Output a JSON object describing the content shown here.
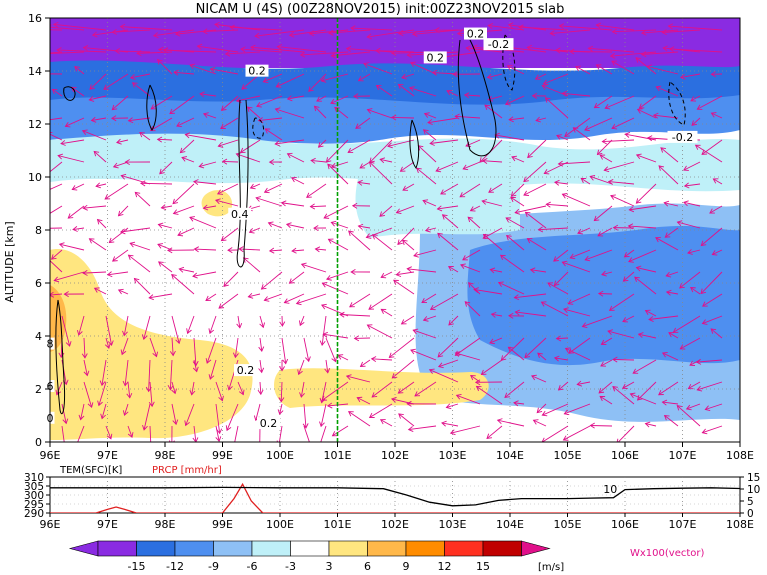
{
  "title": "NICAM U (4S) (00Z28NOV2015) init:00Z23NOV2015 slab",
  "colors": {
    "u_neg15": "#8a2be2",
    "u_neg12": "#2b6fe0",
    "u_neg9": "#4e8ff0",
    "u_neg6": "#8ec0f5",
    "u_neg3": "#bff0f8",
    "u_0": "#ffffff",
    "u_3": "#ffe680",
    "u_6": "#ffb84a",
    "u_9": "#ff8c00",
    "u_12": "#ff3020",
    "u_15": "#c00000",
    "u_max": "#e0108a",
    "vector": "#e0108a",
    "green_line": "#00a000",
    "prcp": "#e02020",
    "temp": "#000000"
  },
  "chart_data": [
    {
      "type": "heatmap",
      "title": "NICAM U (4S) (00Z28NOV2015) init:00Z23NOV2015 slab",
      "ylabel": "ALTITUDE [km]",
      "xlabel": "",
      "x_ticks": [
        "96E",
        "97E",
        "98E",
        "99E",
        "100E",
        "101E",
        "102E",
        "103E",
        "104E",
        "105E",
        "106E",
        "107E",
        "108E"
      ],
      "y_ticks": [
        "0",
        "2",
        "4",
        "6",
        "8",
        "10",
        "12",
        "14",
        "16"
      ],
      "xlim": [
        96,
        108
      ],
      "ylim": [
        0,
        16
      ],
      "grid": true,
      "highlight_x": 101,
      "contour_labels": [
        {
          "text": "0.2",
          "lon": 99.6,
          "alt": 13.9
        },
        {
          "text": "0.4",
          "lon": 99.3,
          "alt": 8.5
        },
        {
          "text": "0.2",
          "lon": 99.4,
          "alt": 2.6
        },
        {
          "text": "0.2",
          "lon": 99.8,
          "alt": 0.6
        },
        {
          "text": "0.2",
          "lon": 103.4,
          "alt": 15.3
        },
        {
          "text": "-0.2",
          "lon": 103.8,
          "alt": 14.9
        },
        {
          "text": "0.2",
          "lon": 102.7,
          "alt": 14.4
        },
        {
          "text": "-0.2",
          "lon": 107.0,
          "alt": 11.4
        },
        {
          "text": "8",
          "lon": 96.0,
          "alt": 3.6
        },
        {
          "text": "6",
          "lon": 96.0,
          "alt": 2.0
        },
        {
          "text": "0",
          "lon": 96.0,
          "alt": 0.8
        }
      ],
      "colorbar": {
        "levels": [
          "-15",
          "-12",
          "-9",
          "-6",
          "-3",
          "3",
          "6",
          "9",
          "12",
          "15"
        ],
        "unit": "[m/s]",
        "vector_label": "Wx100(vector)"
      }
    },
    {
      "type": "line",
      "title": "",
      "x_ticks": [
        "96E",
        "97E",
        "98E",
        "99E",
        "100E",
        "101E",
        "102E",
        "103E",
        "104E",
        "105E",
        "106E",
        "107E",
        "108E"
      ],
      "xlim": [
        96,
        108
      ],
      "series": [
        {
          "name": "TEM(SFC)[K]",
          "axis": "left",
          "ylim": [
            290,
            310
          ],
          "y_ticks": [
            "290",
            "295",
            "300",
            "305",
            "310"
          ],
          "x": [
            96,
            97,
            98,
            99,
            100,
            101,
            101.8,
            102.2,
            102.6,
            103,
            103.4,
            103.8,
            104.2,
            104.6,
            105,
            105.4,
            105.8,
            106,
            106.5,
            107,
            107.5,
            108
          ],
          "values": [
            304,
            304,
            304,
            304.2,
            304,
            304,
            303.5,
            300,
            296,
            294,
            294.5,
            297,
            298,
            298,
            298,
            298.3,
            298.5,
            303,
            303.5,
            303.8,
            304,
            303.6
          ]
        },
        {
          "name": "PRCP [mm/hr]",
          "axis": "right",
          "ylim": [
            0,
            15
          ],
          "y_ticks": [
            "0",
            "5",
            "10",
            "15"
          ],
          "x": [
            96,
            96.8,
            97,
            97.15,
            97.3,
            97.5,
            98,
            99,
            99.2,
            99.35,
            99.5,
            99.7,
            100,
            101,
            102,
            103,
            104,
            105,
            106,
            107,
            108
          ],
          "values": [
            0,
            0,
            1.5,
            2.5,
            1.5,
            0,
            0,
            0,
            6,
            12,
            5,
            0,
            0,
            0,
            0,
            0,
            0,
            0,
            0,
            0,
            0
          ]
        }
      ],
      "annotations": [
        {
          "text": "10",
          "lon": 105.9,
          "value": 10
        }
      ]
    }
  ]
}
